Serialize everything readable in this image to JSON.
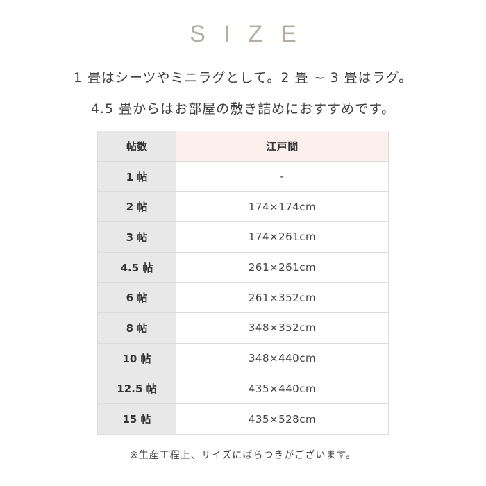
{
  "title": "SIZE",
  "description": [
    "1 畳はシーツやミニラグとして。2 畳 ~ 3 畳はラグ。",
    "4.5 畳からはお部屋の敷き詰めにおすすめです。"
  ],
  "table": {
    "headers": [
      "帖数",
      "江戸間"
    ],
    "rows": [
      [
        "1 帖",
        "-"
      ],
      [
        "2 帖",
        "174×174cm"
      ],
      [
        "3 帖",
        "174×261cm"
      ],
      [
        "4.5 帖",
        "261×261cm"
      ],
      [
        "6 帖",
        "261×352cm"
      ],
      [
        "8 帖",
        "348×352cm"
      ],
      [
        "10 帖",
        "348×440cm"
      ],
      [
        "12.5 帖",
        "435×440cm"
      ],
      [
        "15 帖",
        "435×528cm"
      ]
    ]
  },
  "note": "※生産工程上、サイズにばらつきがございます。",
  "colors": {
    "title": "#b5ada2",
    "header_highlight": "#fcefec",
    "key_column": "#e8e8e8"
  }
}
